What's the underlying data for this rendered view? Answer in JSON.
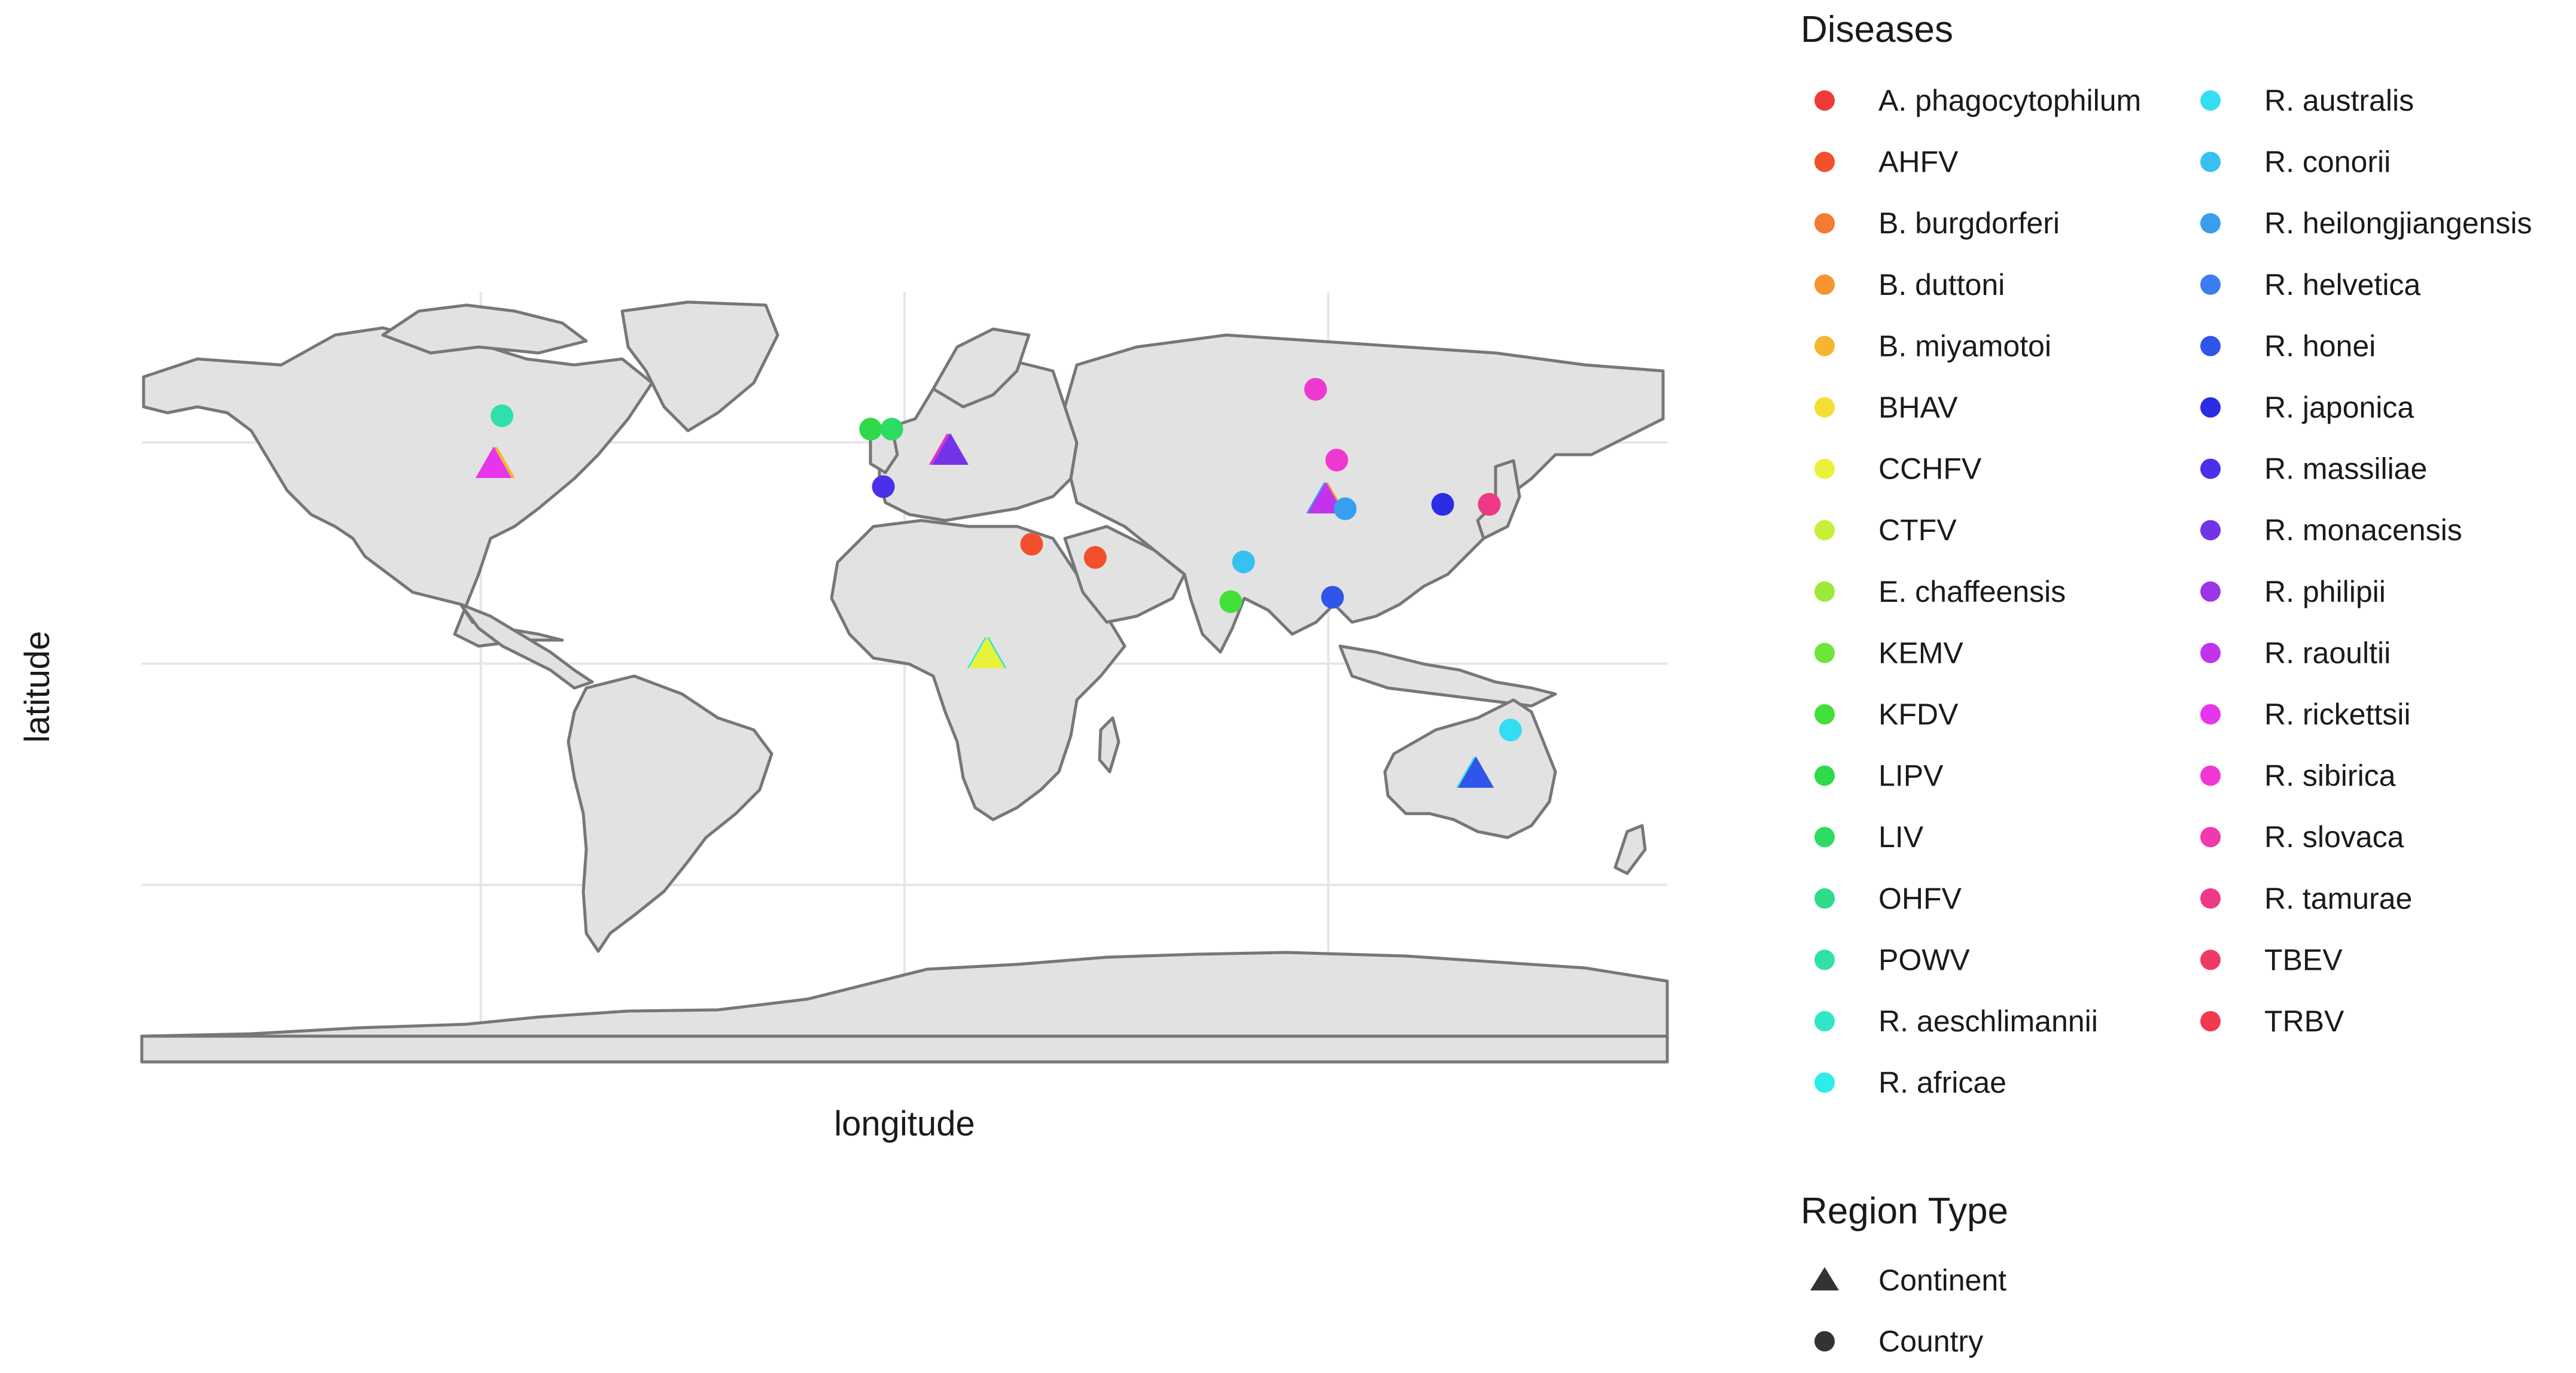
{
  "chart_data": {
    "type": "scatter",
    "subtype": "world-map",
    "xlabel": "longitude",
    "ylabel": "latitude",
    "xlim": [
      -180,
      180
    ],
    "ylim": [
      -90,
      84
    ],
    "grid": true,
    "legend_placement": "right",
    "legends": {
      "color": {
        "title": "Diseases",
        "entries": [
          {
            "name": "A. phagocytophilum",
            "color": "#f03a3a"
          },
          {
            "name": "AHFV",
            "color": "#f2502c"
          },
          {
            "name": "B. burgdorferi",
            "color": "#f37b33"
          },
          {
            "name": "B. duttoni",
            "color": "#f69432"
          },
          {
            "name": "B. miyamotoi",
            "color": "#f6b531"
          },
          {
            "name": "BHAV",
            "color": "#f3df33"
          },
          {
            "name": "CCHFV",
            "color": "#e9f23a"
          },
          {
            "name": "CTFV",
            "color": "#c7ef3a"
          },
          {
            "name": "E. chaffeensis",
            "color": "#9ee83c"
          },
          {
            "name": "KEMV",
            "color": "#6fe53b"
          },
          {
            "name": "KFDV",
            "color": "#44e03a"
          },
          {
            "name": "LIPV",
            "color": "#2ed94a"
          },
          {
            "name": "LIV",
            "color": "#2cdc63"
          },
          {
            "name": "OHFV",
            "color": "#2edc8a"
          },
          {
            "name": "POWV",
            "color": "#30e0ab"
          },
          {
            "name": "R. aeschlimannii",
            "color": "#2fe6c6"
          },
          {
            "name": "R. africae",
            "color": "#2eecea"
          },
          {
            "name": "R. australis",
            "color": "#34def2"
          },
          {
            "name": "R. conorii",
            "color": "#37c0f0"
          },
          {
            "name": "R. heilongjiangensis",
            "color": "#389ff0"
          },
          {
            "name": "R. helvetica",
            "color": "#3a7ef0"
          },
          {
            "name": "R. honei",
            "color": "#2f55ea"
          },
          {
            "name": "R. japonica",
            "color": "#2a2de5"
          },
          {
            "name": "R. massiliae",
            "color": "#4a30ea"
          },
          {
            "name": "R. monacensis",
            "color": "#7434e6"
          },
          {
            "name": "R. philipii",
            "color": "#9b35e8"
          },
          {
            "name": "R. raoultii",
            "color": "#c234ec"
          },
          {
            "name": "R. rickettsii",
            "color": "#e536ec"
          },
          {
            "name": "R. sibirica",
            "color": "#ef38d2"
          },
          {
            "name": "R. slovaca",
            "color": "#ef39ad"
          },
          {
            "name": "R. tamurae",
            "color": "#ee3a86"
          },
          {
            "name": "TBEV",
            "color": "#ef3a66"
          },
          {
            "name": "TRBV",
            "color": "#ee3a4c"
          }
        ]
      },
      "shape": {
        "title": "Region Type",
        "entries": [
          {
            "name": "Continent",
            "shape": "triangle"
          },
          {
            "name": "Country",
            "shape": "circle"
          }
        ]
      }
    },
    "points": [
      {
        "lon": -95,
        "lat": 56,
        "disease": "POWV",
        "region": "Country"
      },
      {
        "lon": -97,
        "lat": 45,
        "disease": "B. burgdorferi",
        "region": "Continent"
      },
      {
        "lon": -97,
        "lat": 45,
        "disease": "B. miyamotoi",
        "region": "Continent"
      },
      {
        "lon": -97,
        "lat": 45,
        "disease": "R. rickettsii",
        "region": "Continent"
      },
      {
        "lon": -8,
        "lat": 53,
        "disease": "LIPV",
        "region": "Country"
      },
      {
        "lon": -3,
        "lat": 53,
        "disease": "LIV",
        "region": "Country"
      },
      {
        "lon": -5,
        "lat": 40,
        "disease": "R. massiliae",
        "region": "Country"
      },
      {
        "lon": 10,
        "lat": 48,
        "disease": "TBEV",
        "region": "Continent"
      },
      {
        "lon": 10,
        "lat": 48,
        "disease": "R. helvetica",
        "region": "Continent"
      },
      {
        "lon": 10,
        "lat": 48,
        "disease": "R. slovaca",
        "region": "Continent"
      },
      {
        "lon": 10,
        "lat": 48,
        "disease": "R. raoultii",
        "region": "Continent"
      },
      {
        "lon": 10,
        "lat": 48,
        "disease": "R. monacensis",
        "region": "Continent"
      },
      {
        "lon": 30,
        "lat": 27,
        "disease": "AHFV",
        "region": "Country"
      },
      {
        "lon": 45,
        "lat": 24,
        "disease": "AHFV",
        "region": "Country"
      },
      {
        "lon": 19,
        "lat": 2,
        "disease": "R. aeschlimannii",
        "region": "Continent"
      },
      {
        "lon": 19,
        "lat": 2,
        "disease": "R. africae",
        "region": "Continent"
      },
      {
        "lon": 19,
        "lat": 2,
        "disease": "CCHFV",
        "region": "Continent"
      },
      {
        "lon": 97,
        "lat": 62,
        "disease": "R. sibirica",
        "region": "Country"
      },
      {
        "lon": 102,
        "lat": 46,
        "disease": "R. sibirica",
        "region": "Country"
      },
      {
        "lon": 99,
        "lat": 37,
        "disease": "CCHFV",
        "region": "Continent"
      },
      {
        "lon": 99,
        "lat": 37,
        "disease": "B. duttoni",
        "region": "Continent"
      },
      {
        "lon": 99,
        "lat": 37,
        "disease": "R. heilongjiangensis",
        "region": "Continent"
      },
      {
        "lon": 99,
        "lat": 37,
        "disease": "R. raoultii",
        "region": "Continent"
      },
      {
        "lon": 104,
        "lat": 35,
        "disease": "R. heilongjiangensis",
        "region": "Country"
      },
      {
        "lon": 80,
        "lat": 23,
        "disease": "R. conorii",
        "region": "Country"
      },
      {
        "lon": 77,
        "lat": 14,
        "disease": "KFDV",
        "region": "Country"
      },
      {
        "lon": 101,
        "lat": 15,
        "disease": "R. honei",
        "region": "Country"
      },
      {
        "lon": 127,
        "lat": 36,
        "disease": "R. japonica",
        "region": "Country"
      },
      {
        "lon": 138,
        "lat": 36,
        "disease": "R. japonica",
        "region": "Country"
      },
      {
        "lon": 138,
        "lat": 36,
        "disease": "R. tamurae",
        "region": "Country"
      },
      {
        "lon": 143,
        "lat": -15,
        "disease": "R. australis",
        "region": "Country"
      },
      {
        "lon": 134,
        "lat": -25,
        "disease": "R. australis",
        "region": "Continent"
      },
      {
        "lon": 134,
        "lat": -25,
        "disease": "R. honei",
        "region": "Continent"
      }
    ]
  }
}
